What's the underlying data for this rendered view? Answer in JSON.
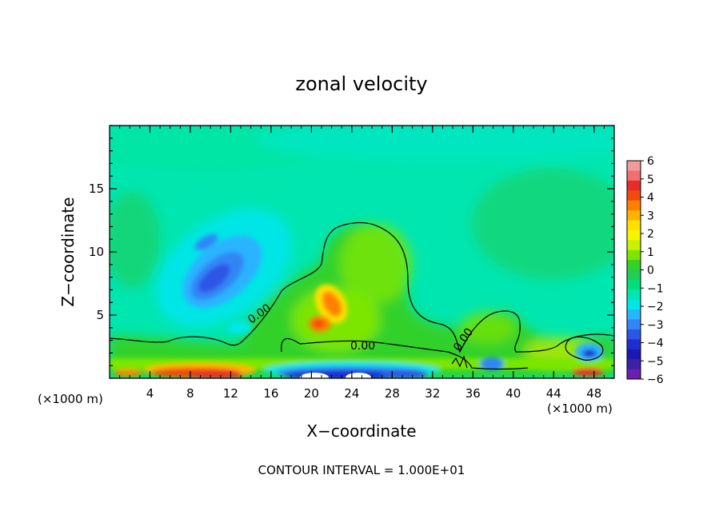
{
  "chart_data": {
    "type": "heatmap",
    "title": "zonal velocity",
    "xlabel": "X−coordinate",
    "ylabel": "Z−coordinate",
    "x_units": "(×1000 m)",
    "x_units_right": "(×1000 m)",
    "xlim": [
      0,
      50
    ],
    "ylim": [
      0,
      20
    ],
    "x_ticks": [
      4,
      8,
      12,
      16,
      20,
      24,
      28,
      32,
      36,
      40,
      44,
      48
    ],
    "y_ticks": [
      5,
      10,
      15
    ],
    "colorbar": {
      "ticks": [
        "6",
        "5",
        "4",
        "3",
        "2",
        "1",
        "0",
        "−1",
        "−2",
        "−3",
        "−4",
        "−5",
        "−6"
      ],
      "colors": [
        "#f59a9a",
        "#f07070",
        "#e62b2b",
        "#f04a10",
        "#ff8000",
        "#ffb300",
        "#ffe000",
        "#f5f500",
        "#c8f000",
        "#7ce600",
        "#33d12a",
        "#22cc55",
        "#00e07a",
        "#00e6b0",
        "#00e6e6",
        "#2ab4ff",
        "#3385f5",
        "#2d55e6",
        "#1f2fcf",
        "#1a1ab0",
        "#3d1fa8",
        "#6b1fb0"
      ]
    },
    "contour_labels": [
      "0.00",
      "0.00",
      "0.00"
    ],
    "contour_interval_label": "CONTOUR INTERVAL = 1.000E+01"
  }
}
